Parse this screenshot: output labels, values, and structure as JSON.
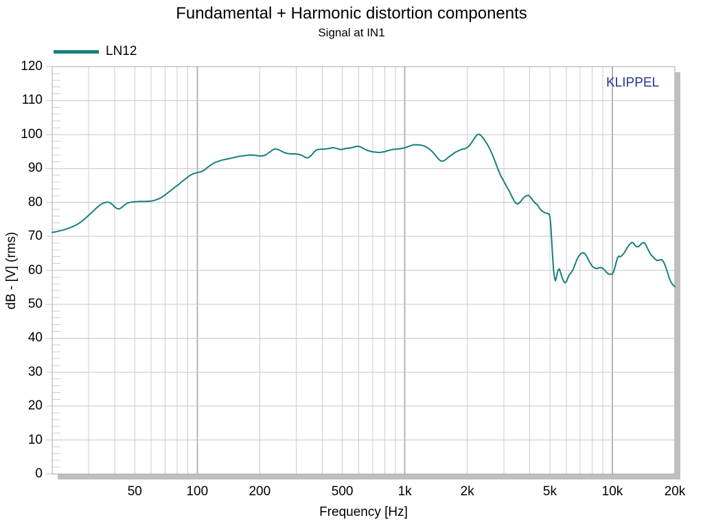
{
  "chart_data": {
    "type": "line",
    "title": "Fundamental + Harmonic distortion components",
    "subtitle": "Signal at IN1",
    "xlabel": "Frequency [Hz]",
    "ylabel": "dB - [V]  (rms)",
    "x_scale": "log",
    "xlim": [
      20,
      20000
    ],
    "ylim": [
      0,
      120
    ],
    "y_major_step": 10,
    "y_minor_step": 2,
    "grid": "on",
    "legend_position": "top-left",
    "annotations": [
      {
        "text": "KLIPPEL",
        "color": "#283593",
        "position": "top-right"
      }
    ],
    "colors": {
      "grid_minor": "#cccccc",
      "grid_major": "#c6c6c6",
      "grid_decade": "#b4b4b4",
      "border": "#a9a9a9",
      "shadow": "#bfbfbf",
      "background": "#ffffff"
    },
    "y_ticks": [
      0,
      10,
      20,
      30,
      40,
      50,
      60,
      70,
      80,
      90,
      100,
      110,
      120
    ],
    "x_ticks": [
      {
        "value": 50,
        "label": "50"
      },
      {
        "value": 100,
        "label": "100"
      },
      {
        "value": 200,
        "label": "200"
      },
      {
        "value": 500,
        "label": "500"
      },
      {
        "value": 1000,
        "label": "1k"
      },
      {
        "value": 2000,
        "label": "2k"
      },
      {
        "value": 5000,
        "label": "5k"
      },
      {
        "value": 10000,
        "label": "10k"
      },
      {
        "value": 20000,
        "label": "20k"
      }
    ],
    "series": [
      {
        "name": "LN12",
        "color": "#157F7E",
        "points": [
          [
            20,
            71.2
          ],
          [
            21,
            71.4
          ],
          [
            22,
            71.7
          ],
          [
            23,
            72.0
          ],
          [
            24,
            72.4
          ],
          [
            25,
            72.8
          ],
          [
            26,
            73.3
          ],
          [
            27,
            73.9
          ],
          [
            28,
            74.6
          ],
          [
            29,
            75.4
          ],
          [
            30,
            76.2
          ],
          [
            31,
            77.0
          ],
          [
            32,
            77.8
          ],
          [
            33,
            78.6
          ],
          [
            34,
            79.2
          ],
          [
            35,
            79.7
          ],
          [
            36,
            80.0
          ],
          [
            37,
            80.1
          ],
          [
            38,
            79.9
          ],
          [
            39,
            79.4
          ],
          [
            40,
            78.7
          ],
          [
            41,
            78.2
          ],
          [
            42,
            78.1
          ],
          [
            43,
            78.4
          ],
          [
            44,
            78.9
          ],
          [
            45,
            79.4
          ],
          [
            46,
            79.8
          ],
          [
            48,
            80.1
          ],
          [
            50,
            80.2
          ],
          [
            53,
            80.3
          ],
          [
            56,
            80.3
          ],
          [
            60,
            80.4
          ],
          [
            63,
            80.7
          ],
          [
            66,
            81.2
          ],
          [
            69,
            81.9
          ],
          [
            72,
            82.8
          ],
          [
            75,
            83.6
          ],
          [
            78,
            84.5
          ],
          [
            81,
            85.2
          ],
          [
            84,
            86.0
          ],
          [
            88,
            87.0
          ],
          [
            92,
            87.9
          ],
          [
            96,
            88.5
          ],
          [
            100,
            88.8
          ],
          [
            104,
            89.0
          ],
          [
            108,
            89.5
          ],
          [
            112,
            90.3
          ],
          [
            116,
            91.0
          ],
          [
            121,
            91.7
          ],
          [
            126,
            92.1
          ],
          [
            132,
            92.5
          ],
          [
            138,
            92.7
          ],
          [
            145,
            93.0
          ],
          [
            152,
            93.3
          ],
          [
            160,
            93.6
          ],
          [
            170,
            93.8
          ],
          [
            180,
            94.0
          ],
          [
            189,
            93.9
          ],
          [
            198,
            93.7
          ],
          [
            206,
            93.7
          ],
          [
            214,
            94.0
          ],
          [
            222,
            94.7
          ],
          [
            230,
            95.4
          ],
          [
            237,
            95.8
          ],
          [
            245,
            95.6
          ],
          [
            253,
            95.2
          ],
          [
            262,
            94.7
          ],
          [
            272,
            94.4
          ],
          [
            283,
            94.3
          ],
          [
            294,
            94.3
          ],
          [
            305,
            94.2
          ],
          [
            315,
            94.0
          ],
          [
            325,
            93.6
          ],
          [
            333,
            93.2
          ],
          [
            340,
            93.1
          ],
          [
            348,
            93.4
          ],
          [
            356,
            94.0
          ],
          [
            364,
            94.7
          ],
          [
            372,
            95.3
          ],
          [
            382,
            95.6
          ],
          [
            394,
            95.7
          ],
          [
            408,
            95.7
          ],
          [
            420,
            95.8
          ],
          [
            433,
            95.9
          ],
          [
            446,
            96.1
          ],
          [
            456,
            96.1
          ],
          [
            468,
            95.9
          ],
          [
            480,
            95.7
          ],
          [
            492,
            95.6
          ],
          [
            505,
            95.7
          ],
          [
            520,
            95.9
          ],
          [
            536,
            96.0
          ],
          [
            552,
            96.1
          ],
          [
            568,
            96.3
          ],
          [
            585,
            96.5
          ],
          [
            600,
            96.5
          ],
          [
            615,
            96.3
          ],
          [
            635,
            95.8
          ],
          [
            655,
            95.4
          ],
          [
            678,
            95.1
          ],
          [
            700,
            94.9
          ],
          [
            725,
            94.8
          ],
          [
            750,
            94.7
          ],
          [
            775,
            94.8
          ],
          [
            805,
            95.0
          ],
          [
            835,
            95.3
          ],
          [
            870,
            95.6
          ],
          [
            905,
            95.7
          ],
          [
            945,
            95.8
          ],
          [
            985,
            96.0
          ],
          [
            1025,
            96.3
          ],
          [
            1065,
            96.7
          ],
          [
            1105,
            97.0
          ],
          [
            1150,
            97.0
          ],
          [
            1195,
            96.9
          ],
          [
            1245,
            96.6
          ],
          [
            1295,
            96.0
          ],
          [
            1345,
            95.2
          ],
          [
            1395,
            94.1
          ],
          [
            1445,
            92.9
          ],
          [
            1490,
            92.2
          ],
          [
            1535,
            92.2
          ],
          [
            1580,
            92.7
          ],
          [
            1630,
            93.4
          ],
          [
            1690,
            94.1
          ],
          [
            1755,
            94.8
          ],
          [
            1825,
            95.3
          ],
          [
            1900,
            95.7
          ],
          [
            1965,
            95.9
          ],
          [
            2030,
            96.5
          ],
          [
            2080,
            97.3
          ],
          [
            2130,
            98.2
          ],
          [
            2180,
            99.2
          ],
          [
            2230,
            99.9
          ],
          [
            2280,
            100.1
          ],
          [
            2330,
            99.7
          ],
          [
            2385,
            98.9
          ],
          [
            2445,
            98.0
          ],
          [
            2510,
            96.9
          ],
          [
            2575,
            95.6
          ],
          [
            2650,
            93.9
          ],
          [
            2725,
            92.0
          ],
          [
            2805,
            89.9
          ],
          [
            2900,
            87.8
          ],
          [
            3000,
            86.2
          ],
          [
            3100,
            84.6
          ],
          [
            3200,
            83.1
          ],
          [
            3300,
            81.4
          ],
          [
            3400,
            80.0
          ],
          [
            3480,
            79.5
          ],
          [
            3560,
            79.8
          ],
          [
            3650,
            80.6
          ],
          [
            3750,
            81.5
          ],
          [
            3850,
            82.0
          ],
          [
            3950,
            82.1
          ],
          [
            4050,
            81.4
          ],
          [
            4150,
            80.5
          ],
          [
            4250,
            79.8
          ],
          [
            4350,
            79.3
          ],
          [
            4450,
            78.4
          ],
          [
            4550,
            77.6
          ],
          [
            4650,
            77.2
          ],
          [
            4750,
            76.9
          ],
          [
            4850,
            76.8
          ],
          [
            4950,
            76.6
          ],
          [
            5010,
            75.6
          ],
          [
            5060,
            72.5
          ],
          [
            5110,
            68.0
          ],
          [
            5160,
            63.5
          ],
          [
            5210,
            60.0
          ],
          [
            5260,
            58.0
          ],
          [
            5310,
            56.9
          ],
          [
            5360,
            57.6
          ],
          [
            5410,
            58.8
          ],
          [
            5460,
            59.7
          ],
          [
            5510,
            60.3
          ],
          [
            5560,
            60.4
          ],
          [
            5620,
            59.5
          ],
          [
            5710,
            58.1
          ],
          [
            5800,
            57.0
          ],
          [
            5900,
            56.3
          ],
          [
            6000,
            56.6
          ],
          [
            6100,
            57.7
          ],
          [
            6200,
            58.7
          ],
          [
            6310,
            59.2
          ],
          [
            6450,
            60.1
          ],
          [
            6600,
            61.6
          ],
          [
            6750,
            63.2
          ],
          [
            6900,
            64.3
          ],
          [
            7050,
            64.9
          ],
          [
            7200,
            65.2
          ],
          [
            7350,
            65.0
          ],
          [
            7500,
            64.2
          ],
          [
            7650,
            63.2
          ],
          [
            7800,
            62.2
          ],
          [
            8000,
            61.2
          ],
          [
            8200,
            60.7
          ],
          [
            8400,
            60.5
          ],
          [
            8600,
            60.7
          ],
          [
            8800,
            60.8
          ],
          [
            9000,
            60.6
          ],
          [
            9200,
            60.0
          ],
          [
            9400,
            59.3
          ],
          [
            9600,
            58.9
          ],
          [
            9800,
            58.8
          ],
          [
            10000,
            58.9
          ],
          [
            10150,
            59.6
          ],
          [
            10300,
            61.0
          ],
          [
            10450,
            62.5
          ],
          [
            10600,
            63.7
          ],
          [
            10750,
            64.2
          ],
          [
            10900,
            64.0
          ],
          [
            11050,
            64.2
          ],
          [
            11250,
            64.7
          ],
          [
            11450,
            65.3
          ],
          [
            11650,
            66.1
          ],
          [
            11900,
            67.0
          ],
          [
            12150,
            67.8
          ],
          [
            12400,
            68.2
          ],
          [
            12650,
            68.0
          ],
          [
            12900,
            67.2
          ],
          [
            13150,
            66.9
          ],
          [
            13400,
            67.0
          ],
          [
            13650,
            67.5
          ],
          [
            13900,
            68.0
          ],
          [
            14150,
            68.2
          ],
          [
            14400,
            67.8
          ],
          [
            14650,
            66.9
          ],
          [
            14950,
            65.8
          ],
          [
            15250,
            64.8
          ],
          [
            15600,
            64.1
          ],
          [
            16000,
            63.4
          ],
          [
            16400,
            62.9
          ],
          [
            16800,
            63.0
          ],
          [
            17250,
            63.2
          ],
          [
            17650,
            62.5
          ],
          [
            18050,
            61.1
          ],
          [
            18450,
            59.3
          ],
          [
            18850,
            57.5
          ],
          [
            19250,
            56.3
          ],
          [
            19600,
            55.7
          ],
          [
            20000,
            55.2
          ]
        ]
      }
    ]
  }
}
